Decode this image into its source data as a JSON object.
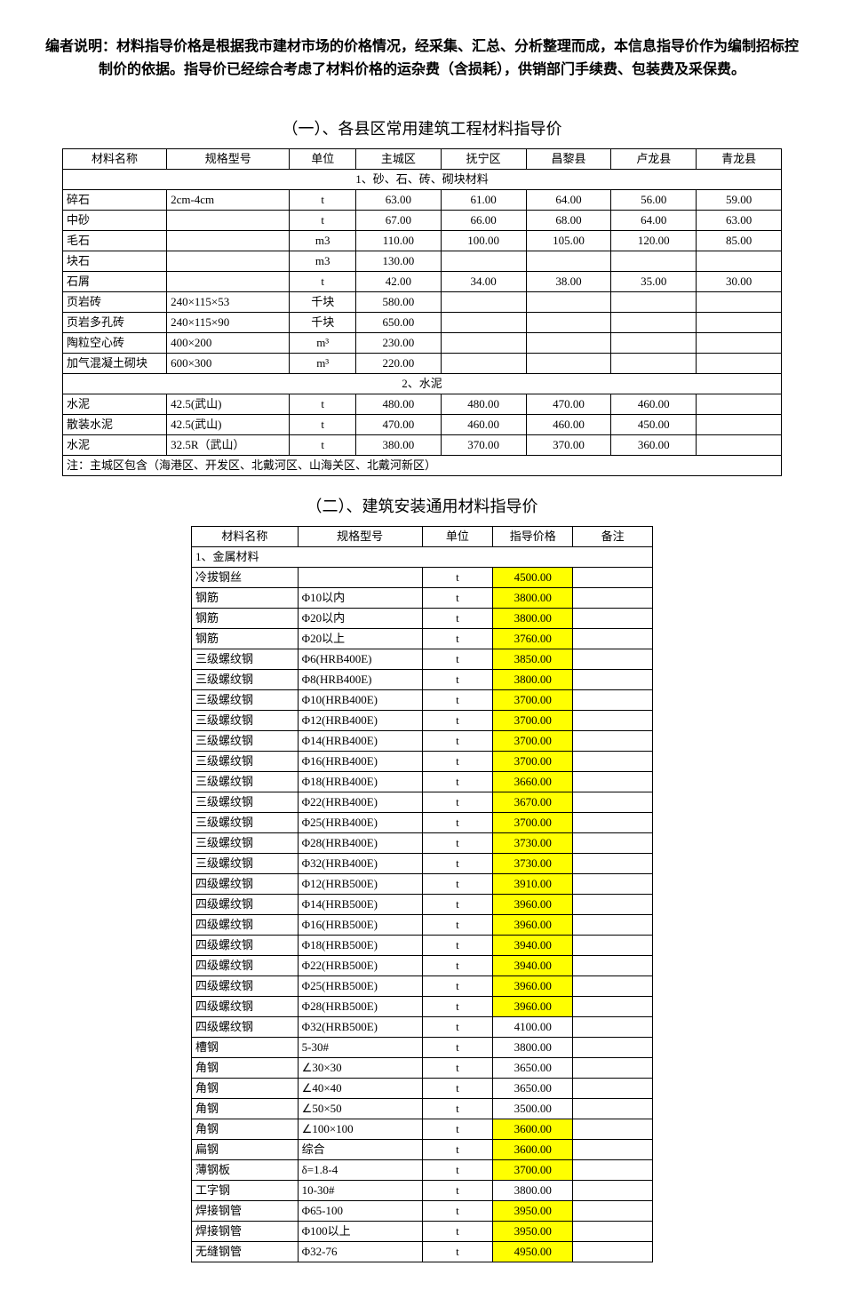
{
  "editor_note": "编者说明：材料指导价格是根据我市建材市场的价格情况，经采集、汇总、分析整理而成，本信息指导价作为编制招标控制价的依据。指导价已经综合考虑了材料价格的运杂费（含损耗），供销部门手续费、包装费及采保费。",
  "section1": {
    "title": "（一）、各县区常用建筑工程材料指导价",
    "columns": [
      "材料名称",
      "规格型号",
      "单位",
      "主城区",
      "抚宁区",
      "昌黎县",
      "卢龙县",
      "青龙县"
    ],
    "col_widths": [
      "110",
      "130",
      "70",
      "90",
      "90",
      "90",
      "90",
      "90"
    ],
    "groups": [
      {
        "label": "1、砂、石、砖、砌块材料",
        "rows": [
          {
            "c": [
              "碎石",
              "2cm-4cm",
              "t",
              "63.00",
              "61.00",
              "64.00",
              "56.00",
              "59.00"
            ]
          },
          {
            "c": [
              "中砂",
              "",
              "t",
              "67.00",
              "66.00",
              "68.00",
              "64.00",
              "63.00"
            ]
          },
          {
            "c": [
              "毛石",
              "",
              "m3",
              "110.00",
              "100.00",
              "105.00",
              "120.00",
              "85.00"
            ]
          },
          {
            "c": [
              "块石",
              "",
              "m3",
              "130.00",
              "",
              "",
              "",
              ""
            ]
          },
          {
            "c": [
              "石屑",
              "",
              "t",
              "42.00",
              "34.00",
              "38.00",
              "35.00",
              "30.00"
            ]
          },
          {
            "c": [
              "页岩砖",
              "240×115×53",
              "千块",
              "580.00",
              "",
              "",
              "",
              ""
            ]
          },
          {
            "c": [
              "页岩多孔砖",
              "240×115×90",
              "千块",
              "650.00",
              "",
              "",
              "",
              ""
            ]
          },
          {
            "c": [
              "陶粒空心砖",
              "400×200",
              "m³",
              "230.00",
              "",
              "",
              "",
              ""
            ]
          },
          {
            "c": [
              "加气混凝土砌块",
              "600×300",
              "m³",
              "220.00",
              "",
              "",
              "",
              ""
            ]
          }
        ]
      },
      {
        "label": "2、水泥",
        "rows": [
          {
            "c": [
              "水泥",
              "42.5(武山)",
              "t",
              "480.00",
              "480.00",
              "470.00",
              "460.00",
              ""
            ]
          },
          {
            "c": [
              "散装水泥",
              "42.5(武山)",
              "t",
              "470.00",
              "460.00",
              "460.00",
              "450.00",
              ""
            ]
          },
          {
            "c": [
              "水泥",
              "32.5R（武山）",
              "t",
              "380.00",
              "370.00",
              "370.00",
              "360.00",
              ""
            ]
          }
        ]
      }
    ],
    "note": "注：主城区包含（海港区、开发区、北戴河区、山海关区、北戴河新区）"
  },
  "section2": {
    "title": "（二）、建筑安装通用材料指导价",
    "columns": [
      "材料名称",
      "规格型号",
      "单位",
      "指导价格",
      "备注"
    ],
    "col_widths": [
      "120",
      "140",
      "80",
      "90",
      "90"
    ],
    "groups": [
      {
        "label": "1、金属材料",
        "rows": [
          {
            "c": [
              "冷拔钢丝",
              "",
              "t",
              "4500.00",
              ""
            ],
            "hl": true
          },
          {
            "c": [
              "钢筋",
              "Φ10以内",
              "t",
              "3800.00",
              ""
            ],
            "hl": true
          },
          {
            "c": [
              "钢筋",
              "Φ20以内",
              "t",
              "3800.00",
              ""
            ],
            "hl": true
          },
          {
            "c": [
              "钢筋",
              "Φ20以上",
              "t",
              "3760.00",
              ""
            ],
            "hl": true
          },
          {
            "c": [
              "三级螺纹钢",
              "Φ6(HRB400E)",
              "t",
              "3850.00",
              ""
            ],
            "hl": true
          },
          {
            "c": [
              "三级螺纹钢",
              "Φ8(HRB400E)",
              "t",
              "3800.00",
              ""
            ],
            "hl": true
          },
          {
            "c": [
              "三级螺纹钢",
              "Φ10(HRB400E)",
              "t",
              "3700.00",
              ""
            ],
            "hl": true
          },
          {
            "c": [
              "三级螺纹钢",
              "Φ12(HRB400E)",
              "t",
              "3700.00",
              ""
            ],
            "hl": true
          },
          {
            "c": [
              "三级螺纹钢",
              "Φ14(HRB400E)",
              "t",
              "3700.00",
              ""
            ],
            "hl": true
          },
          {
            "c": [
              "三级螺纹钢",
              "Φ16(HRB400E)",
              "t",
              "3700.00",
              ""
            ],
            "hl": true
          },
          {
            "c": [
              "三级螺纹钢",
              "Φ18(HRB400E)",
              "t",
              "3660.00",
              ""
            ],
            "hl": true
          },
          {
            "c": [
              "三级螺纹钢",
              "Φ22(HRB400E)",
              "t",
              "3670.00",
              ""
            ],
            "hl": true
          },
          {
            "c": [
              "三级螺纹钢",
              "Φ25(HRB400E)",
              "t",
              "3700.00",
              ""
            ],
            "hl": true
          },
          {
            "c": [
              "三级螺纹钢",
              "Φ28(HRB400E)",
              "t",
              "3730.00",
              ""
            ],
            "hl": true
          },
          {
            "c": [
              "三级螺纹钢",
              "Φ32(HRB400E)",
              "t",
              "3730.00",
              ""
            ],
            "hl": true
          },
          {
            "c": [
              "四级螺纹钢",
              "Φ12(HRB500E)",
              "t",
              "3910.00",
              ""
            ],
            "hl": true
          },
          {
            "c": [
              "四级螺纹钢",
              "Φ14(HRB500E)",
              "t",
              "3960.00",
              ""
            ],
            "hl": true
          },
          {
            "c": [
              "四级螺纹钢",
              "Φ16(HRB500E)",
              "t",
              "3960.00",
              ""
            ],
            "hl": true
          },
          {
            "c": [
              "四级螺纹钢",
              "Φ18(HRB500E)",
              "t",
              "3940.00",
              ""
            ],
            "hl": true
          },
          {
            "c": [
              "四级螺纹钢",
              "Φ22(HRB500E)",
              "t",
              "3940.00",
              ""
            ],
            "hl": true
          },
          {
            "c": [
              "四级螺纹钢",
              "Φ25(HRB500E)",
              "t",
              "3960.00",
              ""
            ],
            "hl": true
          },
          {
            "c": [
              "四级螺纹钢",
              "Φ28(HRB500E)",
              "t",
              "3960.00",
              ""
            ],
            "hl": true
          },
          {
            "c": [
              "四级螺纹钢",
              "Φ32(HRB500E)",
              "t",
              "4100.00",
              ""
            ],
            "hl": false
          },
          {
            "c": [
              "槽钢",
              "5-30#",
              "t",
              "3800.00",
              ""
            ],
            "hl": false
          },
          {
            "c": [
              "角钢",
              "∠30×30",
              "t",
              "3650.00",
              ""
            ],
            "hl": false
          },
          {
            "c": [
              "角钢",
              "∠40×40",
              "t",
              "3650.00",
              ""
            ],
            "hl": false
          },
          {
            "c": [
              "角钢",
              "∠50×50",
              "t",
              "3500.00",
              ""
            ],
            "hl": false
          },
          {
            "c": [
              "角钢",
              "∠100×100",
              "t",
              "3600.00",
              ""
            ],
            "hl": true
          },
          {
            "c": [
              "扁钢",
              "综合",
              "t",
              "3600.00",
              ""
            ],
            "hl": true
          },
          {
            "c": [
              "薄钢板",
              "δ=1.8-4",
              "t",
              "3700.00",
              ""
            ],
            "hl": true
          },
          {
            "c": [
              "工字钢",
              "10-30#",
              "t",
              "3800.00",
              ""
            ],
            "hl": false
          },
          {
            "c": [
              "焊接钢管",
              "Φ65-100",
              "t",
              "3950.00",
              ""
            ],
            "hl": true
          },
          {
            "c": [
              "焊接钢管",
              "Φ100以上",
              "t",
              "3950.00",
              ""
            ],
            "hl": true
          },
          {
            "c": [
              "无缝钢管",
              "Φ32-76",
              "t",
              "4950.00",
              ""
            ],
            "hl": true
          }
        ]
      }
    ]
  }
}
